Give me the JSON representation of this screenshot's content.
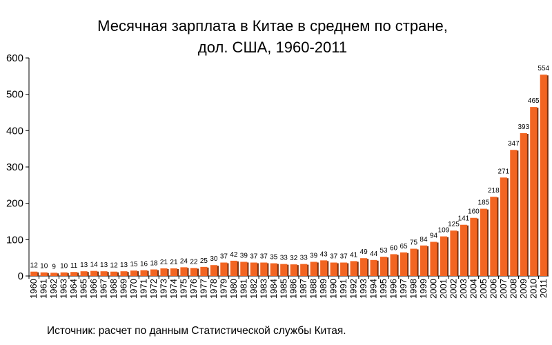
{
  "chart_data": {
    "type": "bar",
    "title_line1": "Месячная зарплата в Китае в среднем по стране,",
    "title_line2": "дол. США, 1960-2011",
    "xlabel": "",
    "ylabel": "",
    "ylim": [
      0,
      600
    ],
    "yticks": [
      "0",
      "100",
      "200",
      "300",
      "400",
      "500",
      "600"
    ],
    "grid": false,
    "legend": "none",
    "categories": [
      "1960",
      "1961",
      "1962",
      "1963",
      "1964",
      "1965",
      "1966",
      "1967",
      "1968",
      "1969",
      "1970",
      "1971",
      "1972",
      "1973",
      "1974",
      "1975",
      "1976",
      "1977",
      "1978",
      "1979",
      "1980",
      "1981",
      "1982",
      "1983",
      "1984",
      "1985",
      "1986",
      "1987",
      "1988",
      "1989",
      "1990",
      "1991",
      "1992",
      "1993",
      "1994",
      "1995",
      "1996",
      "1997",
      "1998",
      "1999",
      "2000",
      "2001",
      "2002",
      "2003",
      "2004",
      "2005",
      "2006",
      "2007",
      "2008",
      "2009",
      "2010",
      "2011"
    ],
    "values": [
      12,
      10,
      9,
      10,
      11,
      13,
      14,
      13,
      12,
      13,
      15,
      16,
      18,
      21,
      21,
      24,
      22,
      25,
      30,
      37,
      42,
      39,
      37,
      37,
      35,
      33,
      32,
      33,
      39,
      43,
      37,
      37,
      41,
      49,
      44,
      53,
      60,
      65,
      75,
      84,
      94,
      109,
      125,
      141,
      160,
      185,
      218,
      271,
      347,
      393,
      465,
      554
    ],
    "bar_color": "#f26522",
    "source": "Источник: расчет по данным Статистической службы Китая."
  }
}
